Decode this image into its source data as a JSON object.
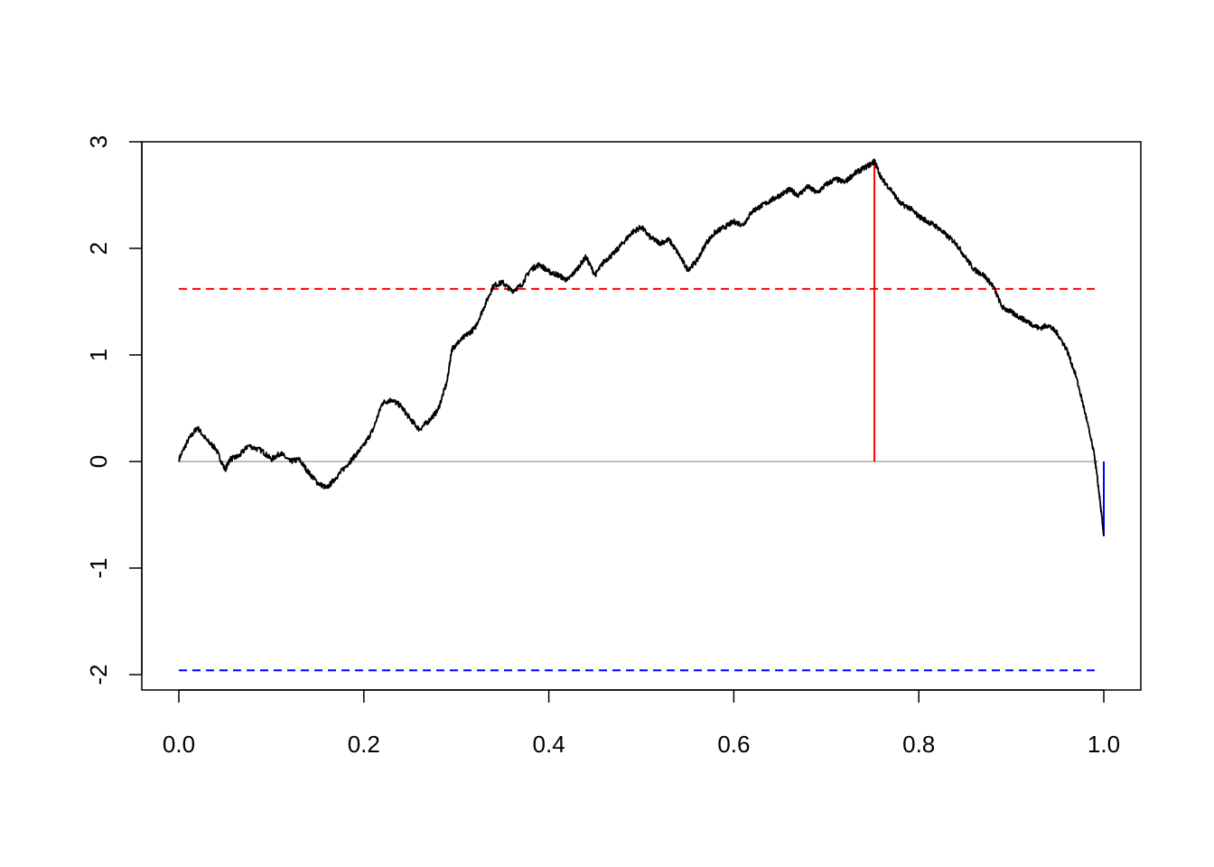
{
  "chart_data": {
    "type": "line",
    "title": "",
    "xlabel": "",
    "ylabel": "",
    "xlim": [
      0,
      1
    ],
    "ylim": [
      -2.1,
      3.0
    ],
    "grid": false,
    "legend": "none",
    "x_ticks": [
      0.0,
      0.2,
      0.4,
      0.6,
      0.8,
      1.0
    ],
    "x_tick_labels": [
      "0.0",
      "0.2",
      "0.4",
      "0.6",
      "0.8",
      "1.0"
    ],
    "y_ticks": [
      -2,
      -1,
      0,
      1,
      2,
      3
    ],
    "y_tick_labels": [
      "-2",
      "-1",
      "0",
      "1",
      "2",
      "3"
    ],
    "series": [
      {
        "name": "path",
        "color": "#000000",
        "x": [
          0.0,
          0.01,
          0.02,
          0.03,
          0.04,
          0.05,
          0.055,
          0.065,
          0.075,
          0.09,
          0.1,
          0.11,
          0.12,
          0.13,
          0.14,
          0.15,
          0.16,
          0.17,
          0.18,
          0.19,
          0.2,
          0.21,
          0.22,
          0.23,
          0.24,
          0.25,
          0.26,
          0.27,
          0.28,
          0.29,
          0.295,
          0.3,
          0.31,
          0.32,
          0.33,
          0.34,
          0.35,
          0.36,
          0.37,
          0.38,
          0.39,
          0.4,
          0.41,
          0.42,
          0.43,
          0.44,
          0.45,
          0.46,
          0.47,
          0.48,
          0.49,
          0.5,
          0.51,
          0.52,
          0.53,
          0.54,
          0.55,
          0.56,
          0.57,
          0.58,
          0.59,
          0.6,
          0.61,
          0.62,
          0.63,
          0.64,
          0.65,
          0.66,
          0.67,
          0.68,
          0.69,
          0.7,
          0.71,
          0.72,
          0.73,
          0.74,
          0.75,
          0.752,
          0.76,
          0.77,
          0.78,
          0.79,
          0.8,
          0.81,
          0.82,
          0.83,
          0.84,
          0.85,
          0.86,
          0.87,
          0.88,
          0.89,
          0.9,
          0.91,
          0.92,
          0.93,
          0.94,
          0.95,
          0.96,
          0.97,
          0.98,
          0.99,
          0.995,
          1.0
        ],
        "values": [
          0.02,
          0.2,
          0.32,
          0.2,
          0.12,
          -0.08,
          0.02,
          0.05,
          0.15,
          0.1,
          0.02,
          0.08,
          0.0,
          0.02,
          -0.1,
          -0.2,
          -0.25,
          -0.15,
          -0.05,
          0.05,
          0.15,
          0.3,
          0.55,
          0.58,
          0.52,
          0.4,
          0.3,
          0.38,
          0.48,
          0.75,
          1.05,
          1.1,
          1.18,
          1.25,
          1.45,
          1.65,
          1.68,
          1.6,
          1.65,
          1.8,
          1.85,
          1.78,
          1.75,
          1.7,
          1.8,
          1.92,
          1.75,
          1.88,
          1.95,
          2.05,
          2.15,
          2.2,
          2.1,
          2.05,
          2.08,
          1.95,
          1.8,
          1.88,
          2.05,
          2.15,
          2.2,
          2.25,
          2.22,
          2.35,
          2.4,
          2.45,
          2.5,
          2.55,
          2.5,
          2.58,
          2.52,
          2.6,
          2.65,
          2.62,
          2.7,
          2.75,
          2.8,
          2.82,
          2.65,
          2.55,
          2.42,
          2.38,
          2.3,
          2.25,
          2.2,
          2.12,
          2.05,
          1.92,
          1.8,
          1.75,
          1.65,
          1.45,
          1.4,
          1.35,
          1.3,
          1.25,
          1.28,
          1.2,
          1.05,
          0.8,
          0.45,
          0.05,
          -0.3,
          -0.7
        ]
      }
    ],
    "reference_lines": [
      {
        "name": "zero-line",
        "type": "horizontal",
        "y": 0,
        "x_range": [
          0,
          1
        ],
        "color": "#bebebe",
        "style": "solid"
      },
      {
        "name": "upper-threshold",
        "type": "horizontal",
        "y": 1.62,
        "x_range": [
          0,
          1
        ],
        "color": "#ff0000",
        "style": "dashed"
      },
      {
        "name": "lower-threshold",
        "type": "horizontal",
        "y": -1.96,
        "x_range": [
          0,
          1
        ],
        "color": "#0000ff",
        "style": "dashed"
      },
      {
        "name": "max-marker",
        "type": "vertical",
        "x": 0.752,
        "y_range": [
          0,
          2.82
        ],
        "color": "#ff0000",
        "style": "solid"
      },
      {
        "name": "end-marker",
        "type": "vertical",
        "x": 1.0,
        "y_range": [
          -0.7,
          0
        ],
        "color": "#0000ff",
        "style": "solid"
      }
    ]
  }
}
